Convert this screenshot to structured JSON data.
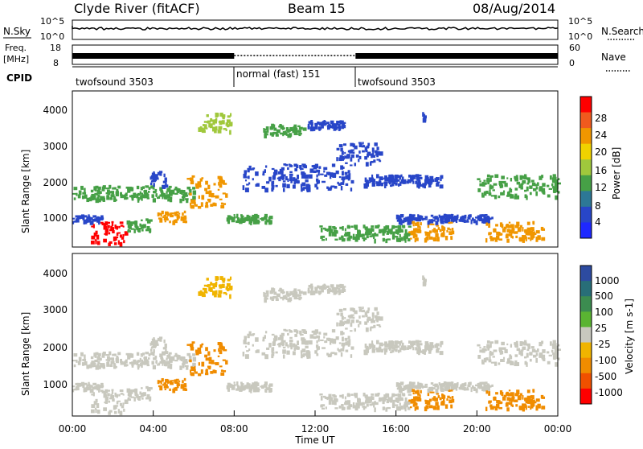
{
  "header": {
    "station": "Clyde River (fitACF)",
    "beam": "Beam 15",
    "date": "08/Aug/2014"
  },
  "strip_labels": {
    "nsky": "N.Sky",
    "nsearch": "N.Search",
    "freq_line1": "Freq.",
    "freq_line2": "[MHz]",
    "nave": "Nave",
    "cpid": "CPID",
    "nsky_top": "10^5",
    "nsky_bottom": "10^0",
    "nsearch_top": "10^5",
    "nsearch_bottom": "10^0",
    "freq_top": "18",
    "freq_bottom": "8",
    "nave_top": "60",
    "nave_bottom": "0"
  },
  "cpid_segments": [
    {
      "label": "twofsound 3503"
    },
    {
      "label": "normal (fast) 151"
    },
    {
      "label": "twofsound 3503"
    }
  ],
  "x_axis": {
    "label": "Time UT",
    "ticks": [
      "00:00",
      "04:00",
      "08:00",
      "12:00",
      "16:00",
      "20:00",
      "00:00"
    ]
  },
  "colors": {
    "power": [
      "#1e28ff",
      "#2846c8",
      "#2d7896",
      "#46a046",
      "#a0c83c",
      "#f0d200",
      "#f09600",
      "#f05a1e",
      "#ff0000"
    ],
    "velocity_pos": [
      "#2d4ba0",
      "#286e78",
      "#3c8c50",
      "#5ab432"
    ],
    "velocity_mid": "#c8c8be",
    "velocity_neg": [
      "#f0b400",
      "#f08c00",
      "#f05000",
      "#ff0000"
    ]
  },
  "chart_data": [
    {
      "type": "heatmap",
      "name": "power",
      "ylabel": "Slant Range [km]",
      "xlabel": "",
      "y_ticks": [
        "1000",
        "2000",
        "3000",
        "4000"
      ],
      "ylim": [
        180,
        4500
      ],
      "colorbar_label": "Power [dB]",
      "colorbar_ticks": [
        "4",
        "8",
        "12",
        "16",
        "20",
        "24",
        "28"
      ],
      "colorbar_range": [
        0,
        30
      ]
    },
    {
      "type": "heatmap",
      "name": "velocity",
      "ylabel": "Slant Range [km]",
      "xlabel": "Time UT",
      "y_ticks": [
        "1000",
        "2000",
        "3000",
        "4000"
      ],
      "ylim": [
        180,
        4500
      ],
      "colorbar_label": "Velocity [m s-1]",
      "colorbar_ticks": [
        "1000",
        "500",
        "100",
        "25",
        "-25",
        "-100",
        "-500",
        "-1000"
      ]
    }
  ]
}
